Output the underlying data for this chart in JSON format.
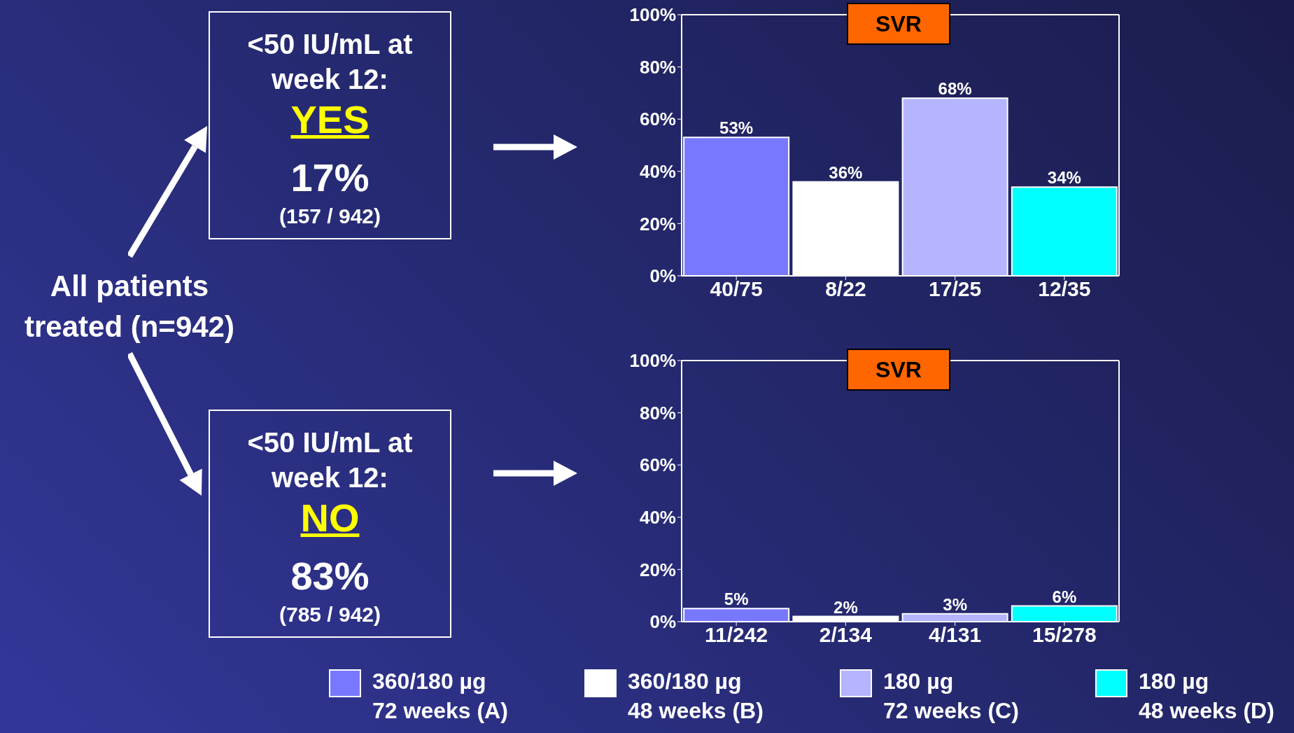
{
  "chart_data": [
    {
      "type": "other",
      "annotations": [
        "<50 IU/mL at week 12:",
        "YES",
        "17%",
        "(157 / 942)",
        "All patients treated (n=942)",
        "<50 IU/mL at week 12:",
        "NO",
        "83%",
        "(785 / 942)"
      ]
    },
    {
      "type": "bar",
      "title": "SVR",
      "categories": [
        "40/75",
        "8/22",
        "17/25",
        "12/35"
      ],
      "ylim": [
        0,
        100
      ],
      "yticks": [
        {
          "value": 0,
          "label": "0%"
        },
        {
          "value": 20,
          "label": "20%"
        },
        {
          "value": 40,
          "label": "40%"
        },
        {
          "value": 60,
          "label": "60%"
        },
        {
          "value": 80,
          "label": "80%"
        },
        {
          "value": 100,
          "label": "100%"
        }
      ],
      "series": [
        {
          "color": "#7878ff",
          "values": [
            53,
            null,
            null,
            null
          ],
          "value_labels": [
            "53%",
            null,
            null,
            null
          ]
        },
        {
          "color": "#ffffff",
          "values": [
            null,
            36,
            null,
            null
          ],
          "value_labels": [
            null,
            "36%",
            null,
            null
          ]
        },
        {
          "color": "#b4b4ff",
          "values": [
            null,
            null,
            68,
            null
          ],
          "value_labels": [
            null,
            null,
            "68%",
            null
          ]
        },
        {
          "color": "#00ffff",
          "values": [
            null,
            null,
            null,
            34
          ],
          "value_labels": [
            null,
            null,
            null,
            "34%"
          ]
        }
      ]
    },
    {
      "type": "bar",
      "title": "SVR",
      "categories": [
        "11/242",
        "2/134",
        "4/131",
        "15/278"
      ],
      "ylim": [
        0,
        100
      ],
      "yticks": [
        {
          "value": 0,
          "label": "0%"
        },
        {
          "value": 20,
          "label": "20%"
        },
        {
          "value": 40,
          "label": "40%"
        },
        {
          "value": 60,
          "label": "60%"
        },
        {
          "value": 80,
          "label": "80%"
        },
        {
          "value": 100,
          "label": "100%"
        }
      ],
      "legend": "bottom",
      "series": [
        {
          "name": "360/180 µg\n72 weeks (A)",
          "color": "#7878ff",
          "values": [
            5,
            null,
            null,
            null
          ],
          "value_labels": [
            "5%",
            null,
            null,
            null
          ]
        },
        {
          "name": "360/180 µg\n48 weeks (B)",
          "color": "#ffffff",
          "values": [
            null,
            2,
            null,
            null
          ],
          "value_labels": [
            null,
            "2%",
            null,
            null
          ]
        },
        {
          "name": "180 µg\n72 weeks (C)",
          "color": "#b4b4ff",
          "values": [
            null,
            null,
            3,
            null
          ],
          "value_labels": [
            null,
            null,
            "3%",
            null
          ]
        },
        {
          "name": "180 µg\n48 weeks (D)",
          "color": "#00ffff",
          "values": [
            null,
            null,
            null,
            6
          ],
          "value_labels": [
            null,
            null,
            null,
            "6%"
          ]
        }
      ]
    }
  ]
}
